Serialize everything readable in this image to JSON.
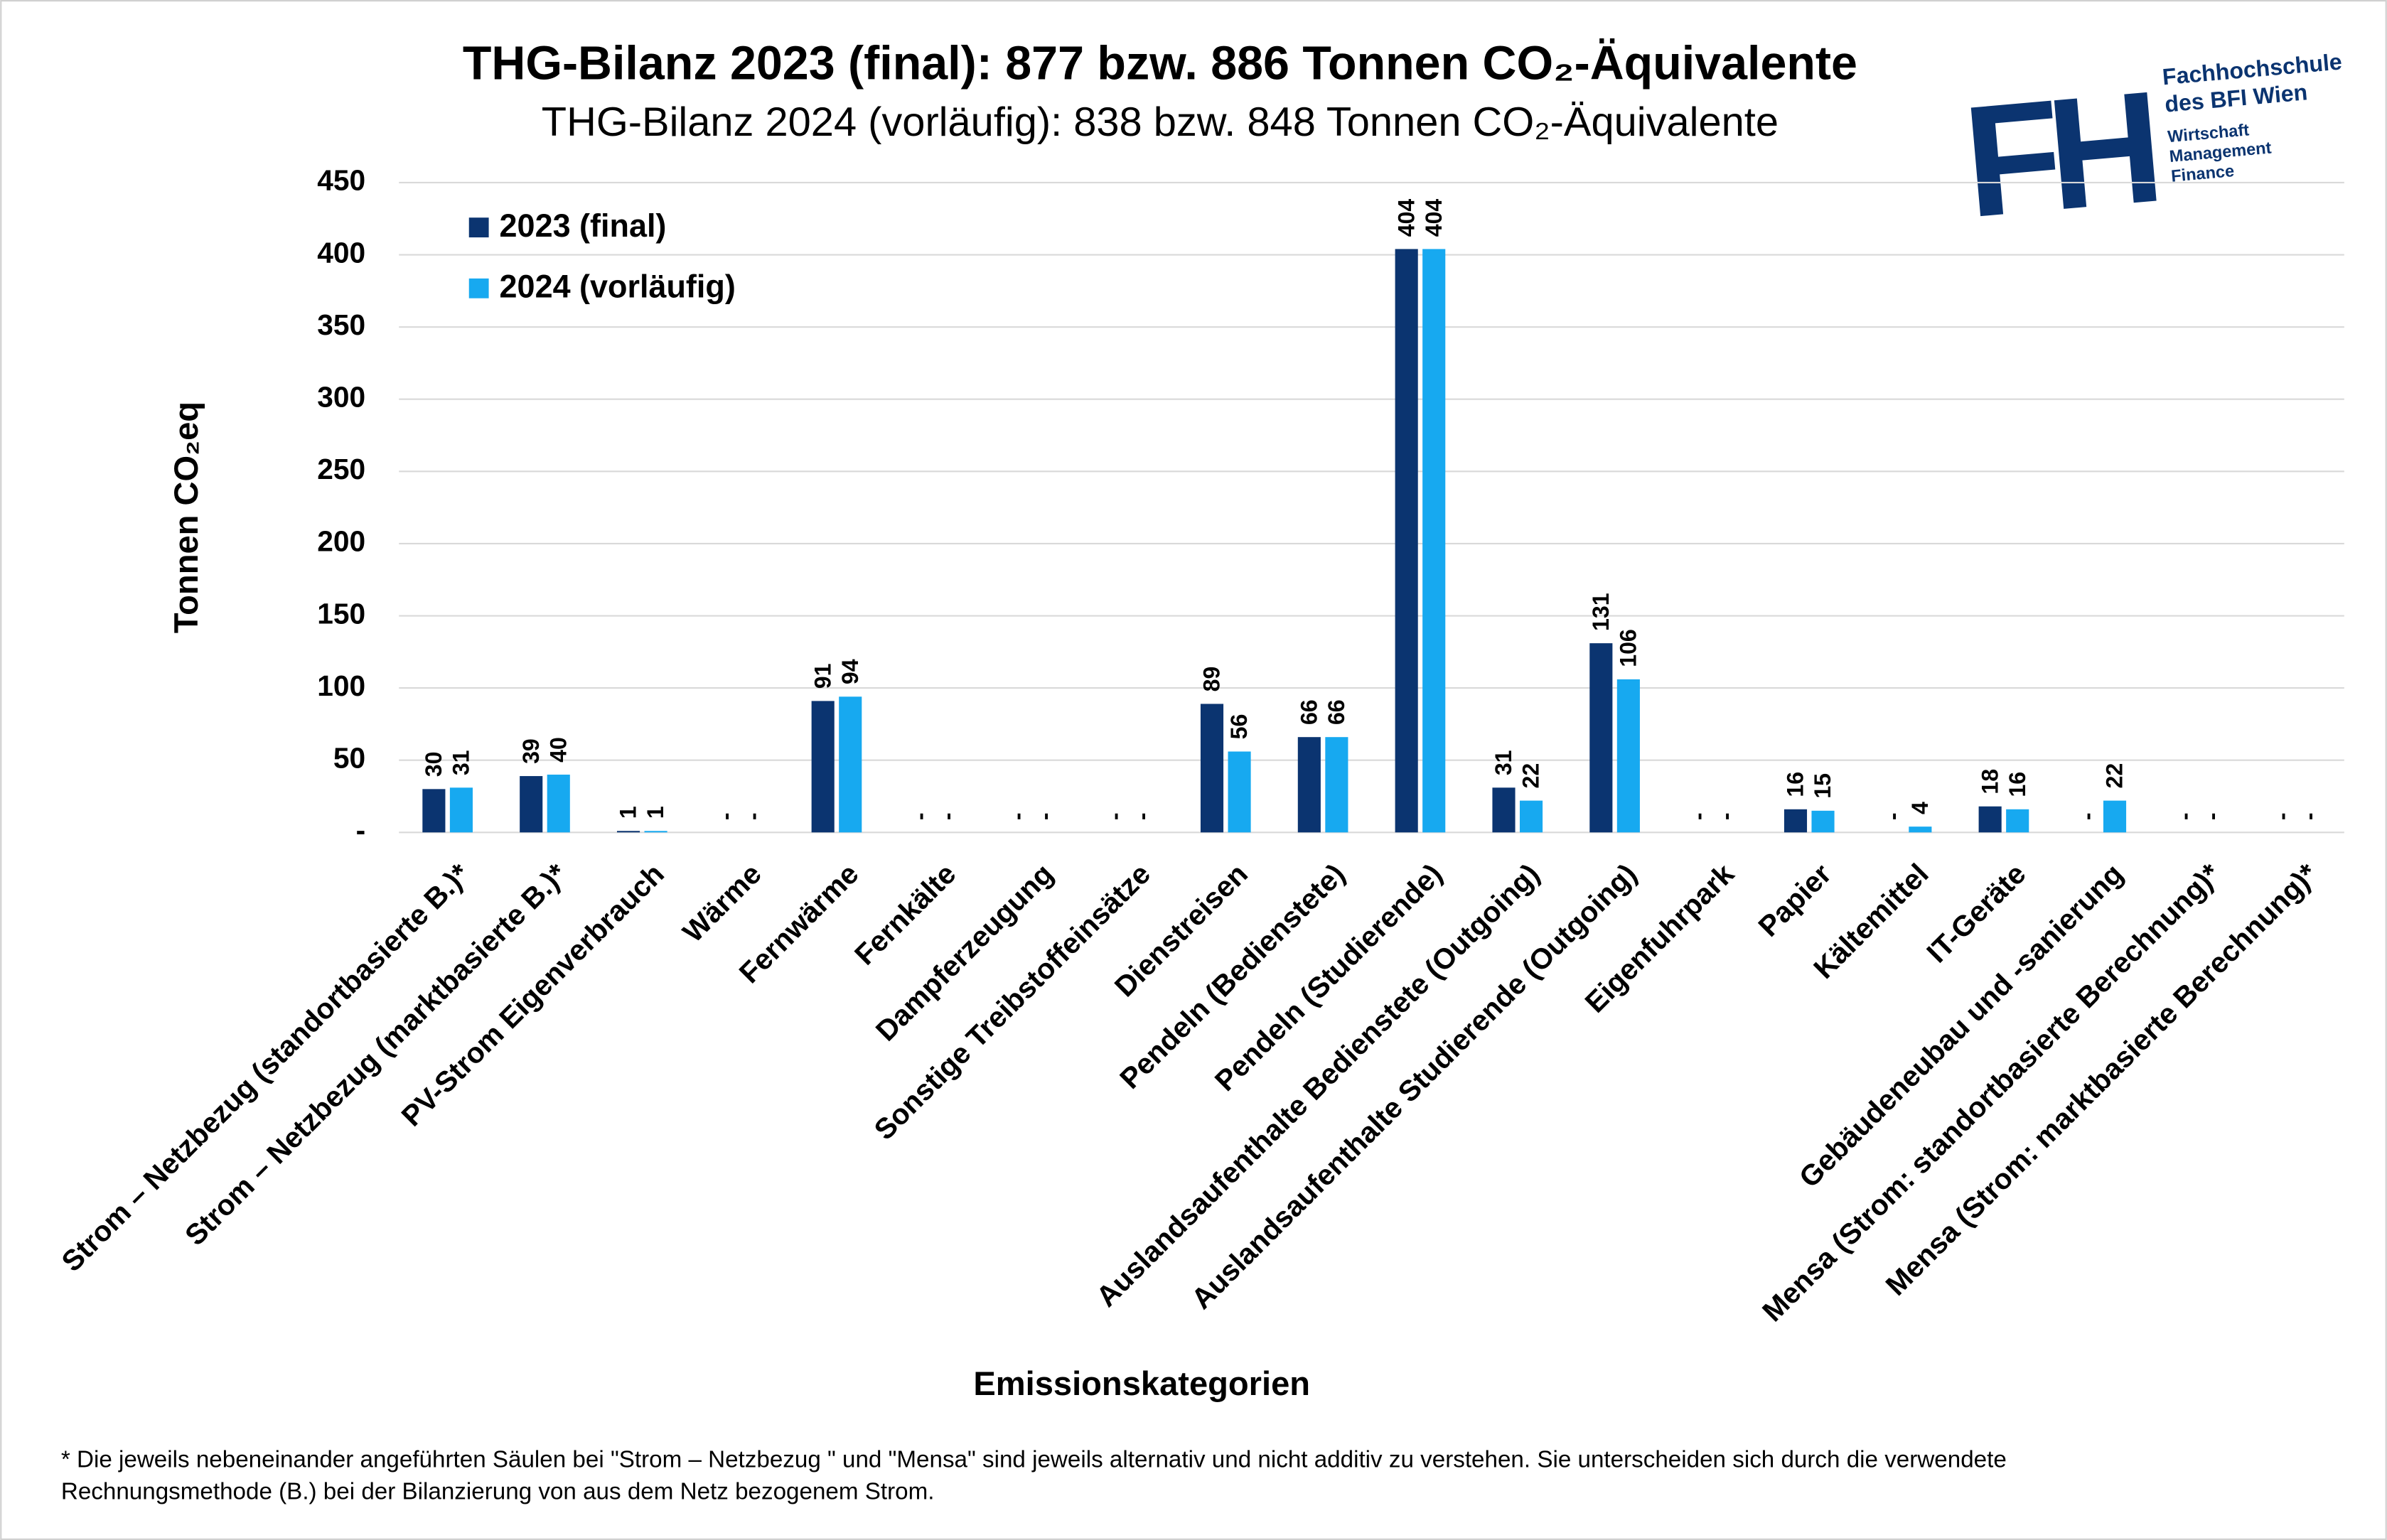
{
  "chart_data": {
    "type": "bar",
    "title": "THG-Bilanz 2023 (final): 877 bzw. 886 Tonnen CO₂-Äquivalente",
    "subtitle": "THG-Bilanz 2024 (vorläufig): 838 bzw. 848 Tonnen CO₂-Äquivalente",
    "y_label": "Tonnen CO₂eq",
    "x_label": "Emissionskategorien",
    "categories": [
      "Strom – Netzbezug (standortbasierte B.)*",
      "Strom – Netzbezug (marktbasierte B.)*",
      "PV-Strom Eigenverbrauch",
      "Wärme",
      "Fernwärme",
      "Fernkälte",
      "Dampferzeugung",
      "Sonstige Treibstoffeinsätze",
      "Dienstreisen",
      "Pendeln (Bedienstete)",
      "Pendeln (Studierende)",
      "Auslandsaufenthalte Bedienstete (Outgoing)",
      "Auslandsaufenthalte Studierende (Outgoing)",
      "Eigenfuhrpark",
      "Papier",
      "Kältemittel",
      "IT-Geräte",
      "Gebäudeneubau und -sanierung",
      "Mensa (Strom: standortbasierte Berechnung)*",
      "Mensa (Strom: marktbasierte Berechnung)*"
    ],
    "series": [
      {
        "name": "2023 (final)",
        "color": "#0b3470",
        "values": [
          30,
          39,
          1,
          0,
          91,
          0,
          0,
          0,
          89,
          66,
          404,
          31,
          131,
          0,
          16,
          0,
          18,
          0,
          0,
          0
        ],
        "value_labels": [
          "30",
          "39",
          "1",
          "-",
          "91",
          "-",
          "-",
          "-",
          "89",
          "66",
          "404",
          "31",
          "131",
          "-",
          "16",
          "-",
          "18",
          "-",
          "-",
          "-"
        ]
      },
      {
        "name": "2024 (vorläufig)",
        "color": "#17a9f0",
        "values": [
          31,
          40,
          1,
          0,
          94,
          0,
          0,
          0,
          56,
          66,
          404,
          22,
          106,
          0,
          15,
          4,
          16,
          22,
          0,
          0
        ],
        "value_labels": [
          "31",
          "40",
          "1",
          "-",
          "94",
          "-",
          "-",
          "-",
          "56",
          "66",
          "404",
          "22",
          "106",
          "-",
          "15",
          "4",
          "16",
          "22",
          "-",
          "-"
        ]
      }
    ],
    "ylim": [
      0,
      450
    ],
    "yticks": [
      {
        "value": 0,
        "label": "-"
      },
      50,
      100,
      150,
      200,
      250,
      300,
      350,
      400,
      450
    ],
    "grid": true,
    "legend": "top-left",
    "footnote": [
      "* Die jeweils nebeneinander angeführten Säulen bei \"Strom – Netzbezug \" und \"Mensa\" sind jeweils alternativ und nicht additiv zu verstehen. Sie unterscheiden sich durch die verwendete",
      "Rechnungsmethode (B.) bei der Bilanzierung von aus dem Netz bezogenem Strom."
    ]
  },
  "logo": {
    "mark": "FH",
    "name": [
      "Fachhochschule",
      "des BFI Wien"
    ],
    "tagline": [
      "Wirtschaft",
      "Management",
      "Finance"
    ]
  }
}
